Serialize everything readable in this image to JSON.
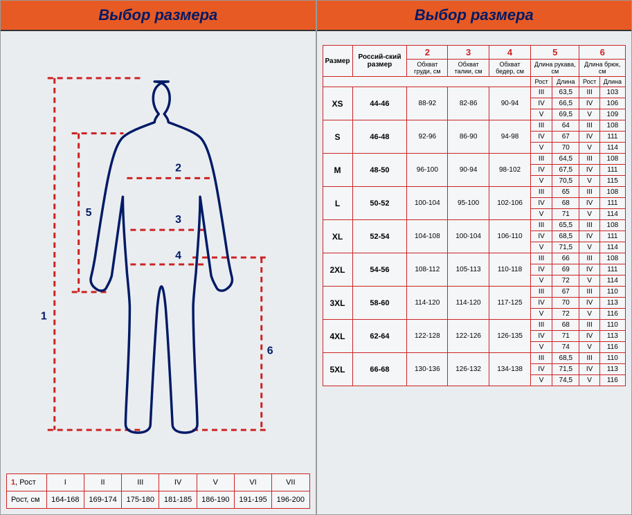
{
  "colors": {
    "header_bg": "#e85a24",
    "header_text": "#001a66",
    "border": "#cc2222",
    "bg_panel": "#eaedf0",
    "cell_bg": "#f4f6f8",
    "outline": "#001a66",
    "dash": "#cc2222"
  },
  "titles": {
    "left": "Выбор размера",
    "right": "Выбор размера"
  },
  "diagram": {
    "markers": {
      "m1": "1",
      "m2": "2",
      "m3": "3",
      "m4": "4",
      "m5": "5",
      "m6": "6"
    }
  },
  "height_table": {
    "row1_label_prefix": "1",
    "row1_label_text": ", Рост",
    "row2_label": "Рост, см",
    "romans": [
      "I",
      "II",
      "III",
      "IV",
      "V",
      "VI",
      "VII"
    ],
    "ranges": [
      "164-168",
      "169-174",
      "175-180",
      "181-185",
      "186-190",
      "191-195",
      "196-200"
    ]
  },
  "size_table": {
    "header": {
      "size": "Размер",
      "rus": "Россий-ский размер",
      "chest": "Обхват груди, см",
      "waist": "Обхват талии, см",
      "hip": "Обхват бедер, см",
      "sleeve": "Длина рукава, см",
      "pants": "Длина брюк, см",
      "rost": "Рост",
      "dlina": "Длина",
      "col2": "2",
      "col3": "3",
      "col4": "4",
      "col5": "5",
      "col6": "6"
    },
    "rows": [
      {
        "size": "XS",
        "rus": "44-46",
        "chest": "88-92",
        "waist": "82-86",
        "hip": "90-94",
        "sub": [
          [
            "III",
            "63,5",
            "III",
            "103"
          ],
          [
            "IV",
            "66,5",
            "IV",
            "106"
          ],
          [
            "V",
            "69,5",
            "V",
            "109"
          ]
        ]
      },
      {
        "size": "S",
        "rus": "46-48",
        "chest": "92-96",
        "waist": "86-90",
        "hip": "94-98",
        "sub": [
          [
            "III",
            "64",
            "III",
            "108"
          ],
          [
            "IV",
            "67",
            "IV",
            "111"
          ],
          [
            "V",
            "70",
            "V",
            "114"
          ]
        ]
      },
      {
        "size": "M",
        "rus": "48-50",
        "chest": "96-100",
        "waist": "90-94",
        "hip": "98-102",
        "sub": [
          [
            "III",
            "64,5",
            "III",
            "108"
          ],
          [
            "IV",
            "67,5",
            "IV",
            "111"
          ],
          [
            "V",
            "70,5",
            "V",
            "115"
          ]
        ]
      },
      {
        "size": "L",
        "rus": "50-52",
        "chest": "100-104",
        "waist": "95-100",
        "hip": "102-106",
        "sub": [
          [
            "III",
            "65",
            "III",
            "108"
          ],
          [
            "IV",
            "68",
            "IV",
            "111"
          ],
          [
            "V",
            "71",
            "V",
            "114"
          ]
        ]
      },
      {
        "size": "XL",
        "rus": "52-54",
        "chest": "104-108",
        "waist": "100-104",
        "hip": "106-110",
        "sub": [
          [
            "III",
            "65,5",
            "III",
            "108"
          ],
          [
            "IV",
            "68,5",
            "IV",
            "111"
          ],
          [
            "V",
            "71,5",
            "V",
            "114"
          ]
        ]
      },
      {
        "size": "2XL",
        "rus": "54-56",
        "chest": "108-112",
        "waist": "105-113",
        "hip": "110-118",
        "sub": [
          [
            "III",
            "66",
            "III",
            "108"
          ],
          [
            "IV",
            "69",
            "IV",
            "111"
          ],
          [
            "V",
            "72",
            "V",
            "114"
          ]
        ]
      },
      {
        "size": "3XL",
        "rus": "58-60",
        "chest": "114-120",
        "waist": "114-120",
        "hip": "117-125",
        "sub": [
          [
            "III",
            "67",
            "III",
            "110"
          ],
          [
            "IV",
            "70",
            "IV",
            "113"
          ],
          [
            "V",
            "72",
            "V",
            "116"
          ]
        ]
      },
      {
        "size": "4XL",
        "rus": "62-64",
        "chest": "122-128",
        "waist": "122-126",
        "hip": "126-135",
        "sub": [
          [
            "III",
            "68",
            "III",
            "110"
          ],
          [
            "IV",
            "71",
            "IV",
            "113"
          ],
          [
            "V",
            "74",
            "V",
            "116"
          ]
        ]
      },
      {
        "size": "5XL",
        "rus": "66-68",
        "chest": "130-136",
        "waist": "126-132",
        "hip": "134-138",
        "sub": [
          [
            "III",
            "68,5",
            "III",
            "110"
          ],
          [
            "IV",
            "71,5",
            "IV",
            "113"
          ],
          [
            "V",
            "74,5",
            "V",
            "116"
          ]
        ]
      }
    ]
  }
}
